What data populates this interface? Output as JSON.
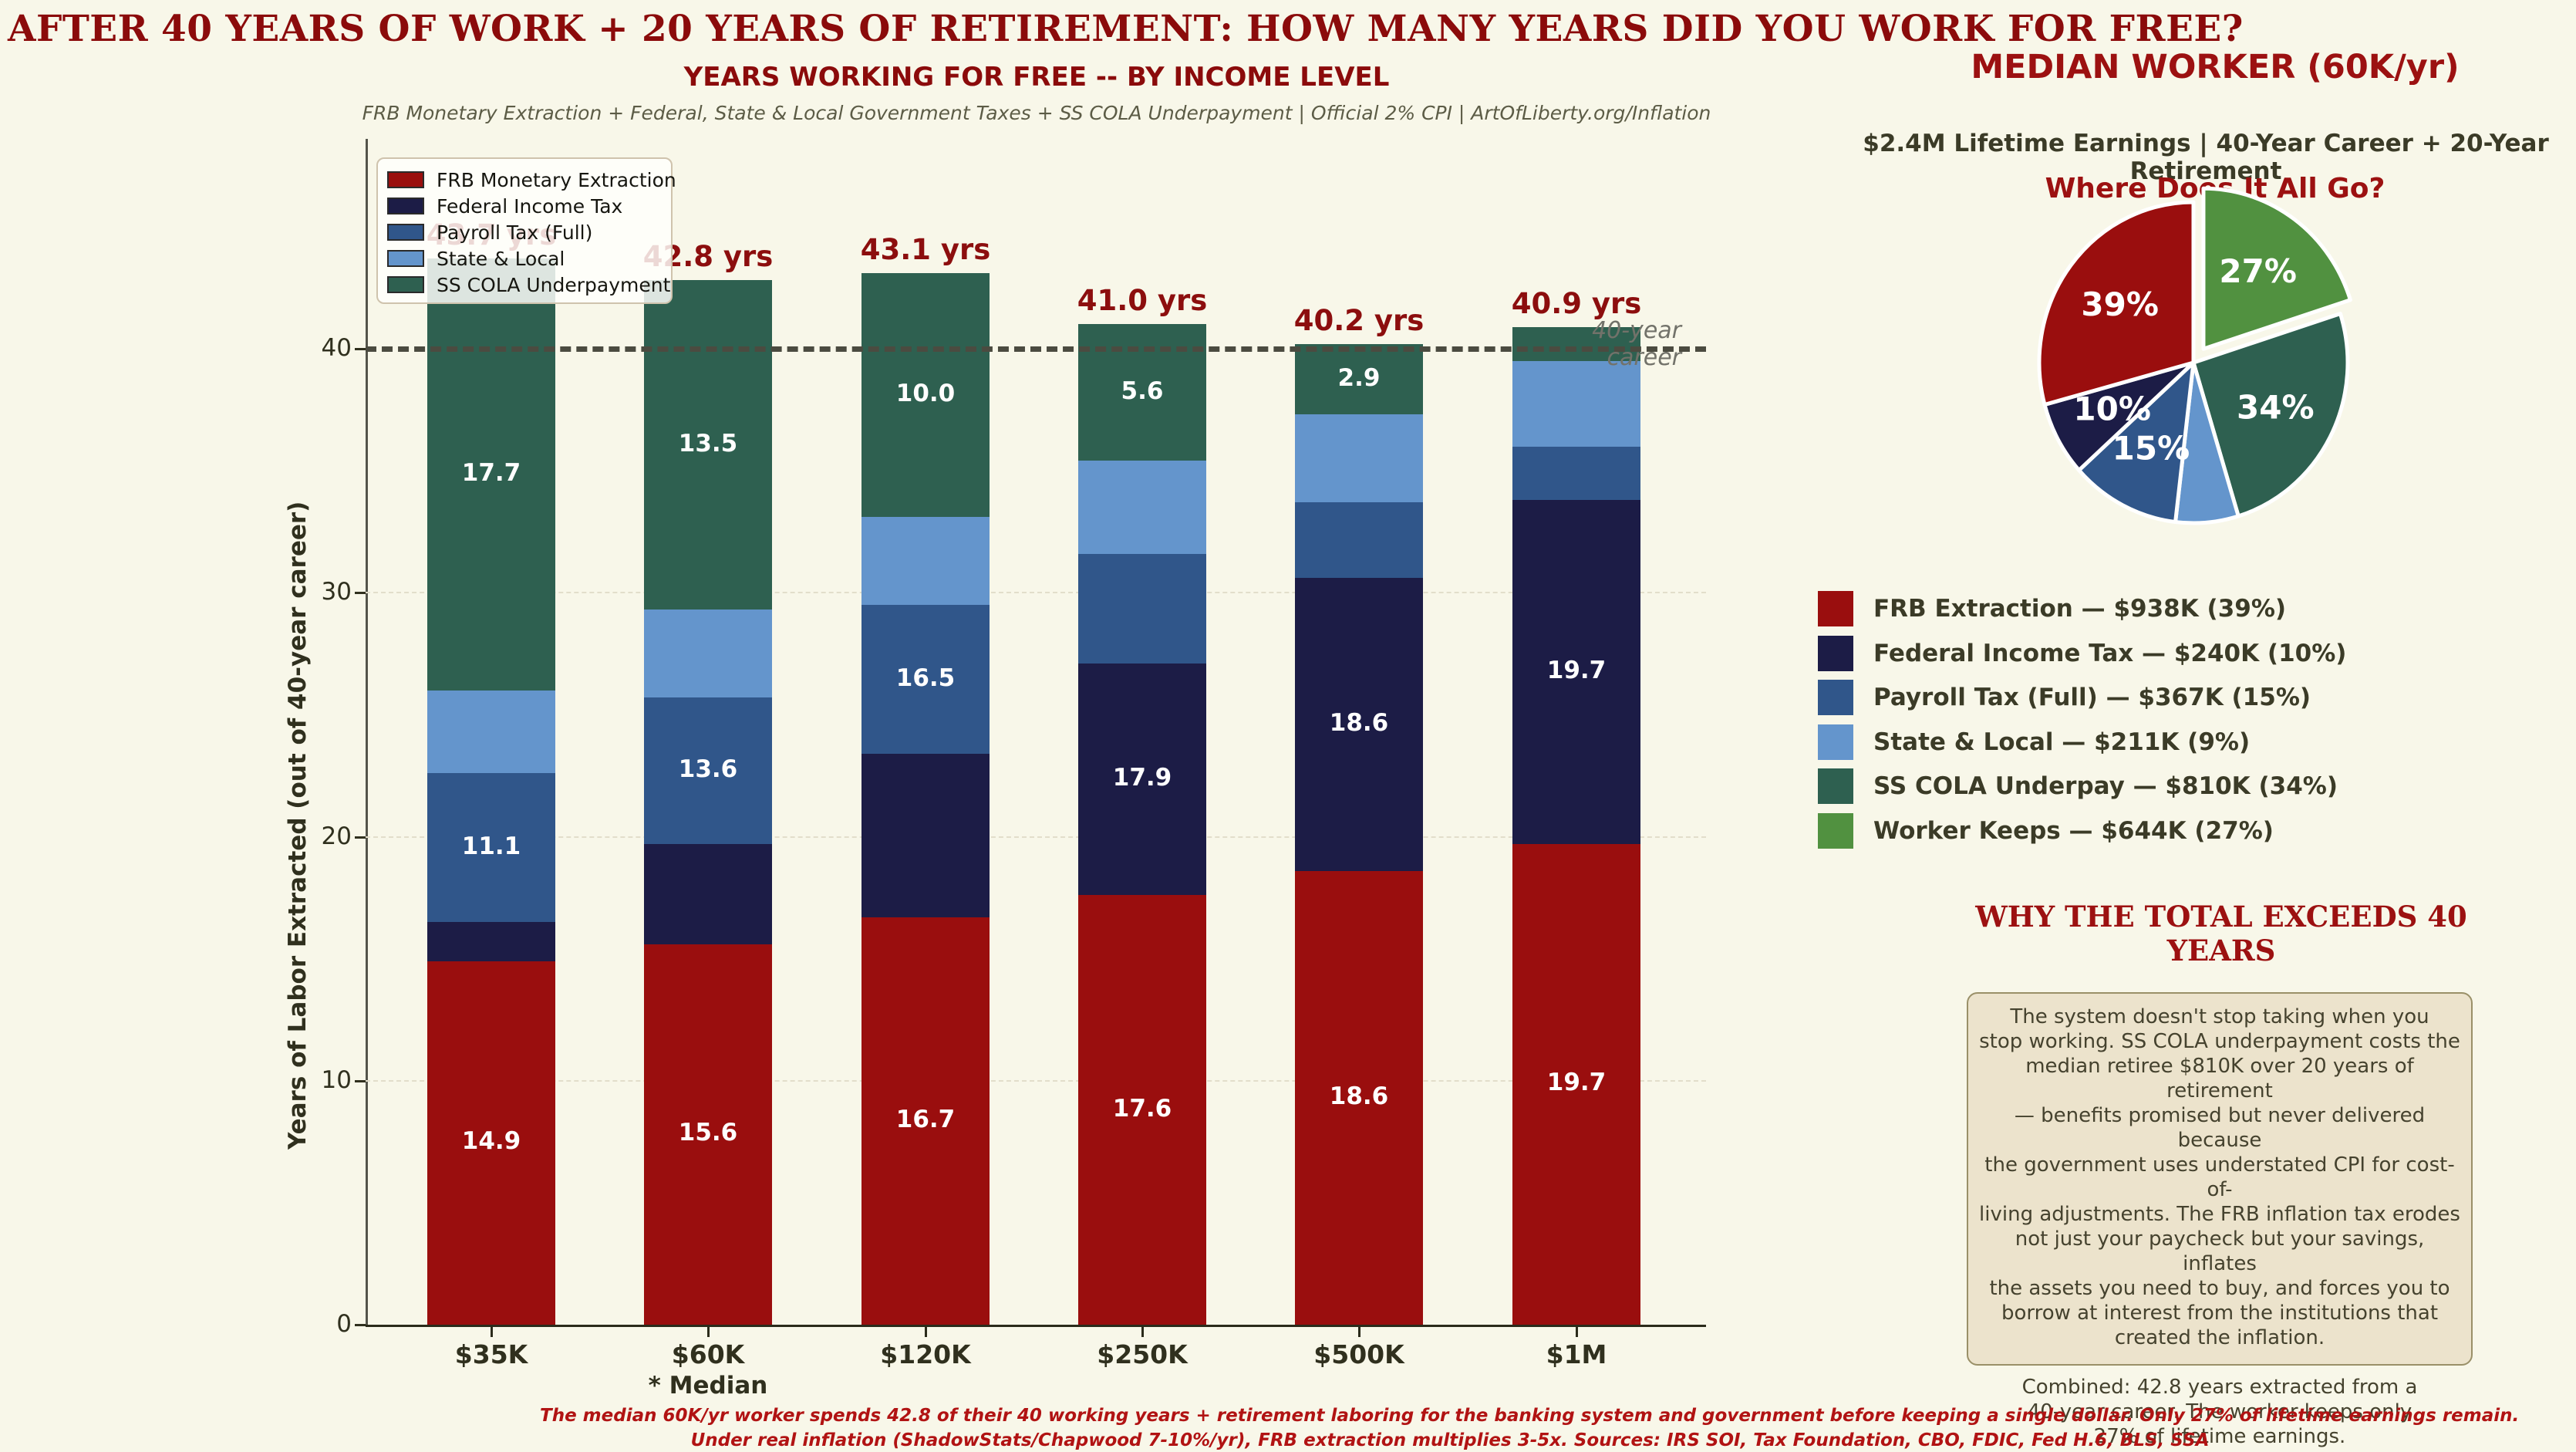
{
  "header": {
    "title": "AFTER 40 YEARS OF WORK + 20 YEARS OF RETIREMENT: HOW MANY YEARS DID YOU WORK FOR FREE?"
  },
  "bar_section": {
    "footer_line1": "The median 60K/yr worker spends 42.8 of their 40 working years + retirement laboring for the banking system and government before keeping a single dollar.  Only 27% of lifetime earnings remain.",
    "footer_line2": "Under real inflation (ShadowStats/Chapwood 7-10%/yr), FRB extraction multiplies 3-5x.  Sources: IRS SOI, Tax Foundation, CBO, FDIC, Fed H.6, BLS, SSA"
  },
  "pie_section": {
    "why_heading": "WHY THE TOTAL EXCEEDS 40 YEARS",
    "why_text": "The system doesn't stop taking when you\nstop working. SS COLA underpayment costs the\nmedian retiree $810K over 20 years of retirement\n— benefits promised but never delivered because\nthe government uses understated CPI for cost-of-\nliving adjustments. The FRB inflation tax erodes\nnot just your paycheck but your savings, inflates\nthe assets you need to buy, and forces you to\nborrow at interest from the institutions that\ncreated the inflation.\n\nCombined: 42.8 years extracted from a\n40-year career. The worker keeps only\n27% of lifetime earnings."
  },
  "colors": {
    "background": "#f8f7e9",
    "title_red": "#8b0b0b",
    "accent_red": "#9c1111",
    "footer_red": "#b11313",
    "frb_red": "#9a0e0e",
    "federal_navy": "#1c1c46",
    "payroll_blue": "#30568a",
    "state_lightblue": "#6495cc",
    "sscola_teal": "#2e6050",
    "worker_green": "#519140",
    "axis_text": "#30301e",
    "ref_line": "#4b4b40"
  },
  "chart_data": [
    {
      "type": "bar",
      "stacked": true,
      "title": "YEARS WORKING FOR FREE -- BY INCOME LEVEL",
      "subtitle": "FRB Monetary Extraction + Federal, State & Local Government Taxes + SS COLA Underpayment  |  Official 2% CPI  |  ArtOfLiberty.org/Inflation",
      "ylabel": "Years of Labor Extracted (out of 40-year career)",
      "ylim": [
        0,
        46
      ],
      "yticks": [
        0,
        10,
        20,
        30,
        40
      ],
      "grid": "horizontal dashed at 10/20/30",
      "legend_position": "upper left",
      "reference_line": {
        "value": 40,
        "label": "40-year career"
      },
      "categories": [
        "$35K",
        "$60K",
        "$120K",
        "$250K",
        "$500K",
        "$1M"
      ],
      "category_note": {
        "text": "* Median",
        "category_index": 1
      },
      "total_labels": [
        "43.7 yrs",
        "42.8 yrs",
        "43.1 yrs",
        "41.0 yrs",
        "40.2 yrs",
        "40.9 yrs"
      ],
      "series": [
        {
          "name": "FRB Monetary Extraction",
          "color": "#9a0e0e",
          "values": [
            14.9,
            15.6,
            16.7,
            17.6,
            18.6,
            19.7
          ],
          "labels": [
            "14.9",
            "15.6",
            "16.7",
            "17.6",
            "18.6",
            "19.7"
          ]
        },
        {
          "name": "Federal Income Tax",
          "color": "#1c1c46",
          "values": [
            1.6,
            4.1,
            6.7,
            9.5,
            12.0,
            14.1
          ],
          "labels": [
            null,
            null,
            null,
            "17.9",
            "18.6",
            "19.7"
          ]
        },
        {
          "name": "Payroll Tax (Full)",
          "color": "#30568a",
          "values": [
            6.1,
            6.0,
            6.1,
            4.5,
            3.1,
            2.2
          ],
          "labels": [
            "11.1",
            "13.6",
            "16.5",
            null,
            null,
            null
          ]
        },
        {
          "name": "State & Local",
          "color": "#6495cc",
          "values": [
            3.4,
            3.6,
            3.6,
            3.8,
            3.6,
            3.5
          ],
          "labels": [
            null,
            null,
            null,
            null,
            null,
            null
          ]
        },
        {
          "name": "SS COLA Underpayment",
          "color": "#2e6050",
          "values": [
            17.7,
            13.5,
            10.0,
            5.6,
            2.9,
            1.4
          ],
          "labels": [
            "17.7",
            "13.5",
            "10.0",
            "5.6",
            "2.9",
            null
          ]
        }
      ]
    },
    {
      "type": "pie",
      "title": "MEDIAN WORKER (60K/yr)",
      "subtitle": "$2.4M Lifetime Earnings | 40-Year Career + 20-Year Retirement",
      "question": "Where Does It All Go?",
      "start_angle": "12 o'clock, clockwise",
      "slices": [
        {
          "name": "Worker Keeps",
          "amount": "$644K",
          "value": 644,
          "pct_label": "27%",
          "color": "#519140",
          "exploded": true
        },
        {
          "name": "SS COLA Underpay",
          "amount": "$810K",
          "value": 810,
          "pct_label": "34%",
          "color": "#2e6050",
          "exploded": false
        },
        {
          "name": "State & Local",
          "amount": "$211K",
          "value": 211,
          "pct_label": null,
          "color": "#6495cc",
          "exploded": false
        },
        {
          "name": "Payroll Tax (Full)",
          "amount": "$367K",
          "value": 367,
          "pct_label": "15%",
          "color": "#30568a",
          "exploded": false
        },
        {
          "name": "Federal Income Tax",
          "amount": "$240K",
          "value": 240,
          "pct_label": "10%",
          "color": "#1c1c46",
          "exploded": false
        },
        {
          "name": "FRB Extraction",
          "amount": "$938K",
          "value": 938,
          "pct_label": "39%",
          "color": "#9a0e0e",
          "exploded": false
        }
      ],
      "legend": [
        {
          "label": "FRB Extraction — $938K (39%)",
          "color": "#9a0e0e"
        },
        {
          "label": "Federal Income Tax — $240K (10%)",
          "color": "#1c1c46"
        },
        {
          "label": "Payroll Tax (Full) — $367K (15%)",
          "color": "#30568a"
        },
        {
          "label": "State & Local — $211K (9%)",
          "color": "#6495cc"
        },
        {
          "label": "SS COLA Underpay — $810K (34%)",
          "color": "#2e6050"
        },
        {
          "label": "Worker Keeps — $644K (27%)",
          "color": "#519140"
        }
      ]
    }
  ]
}
